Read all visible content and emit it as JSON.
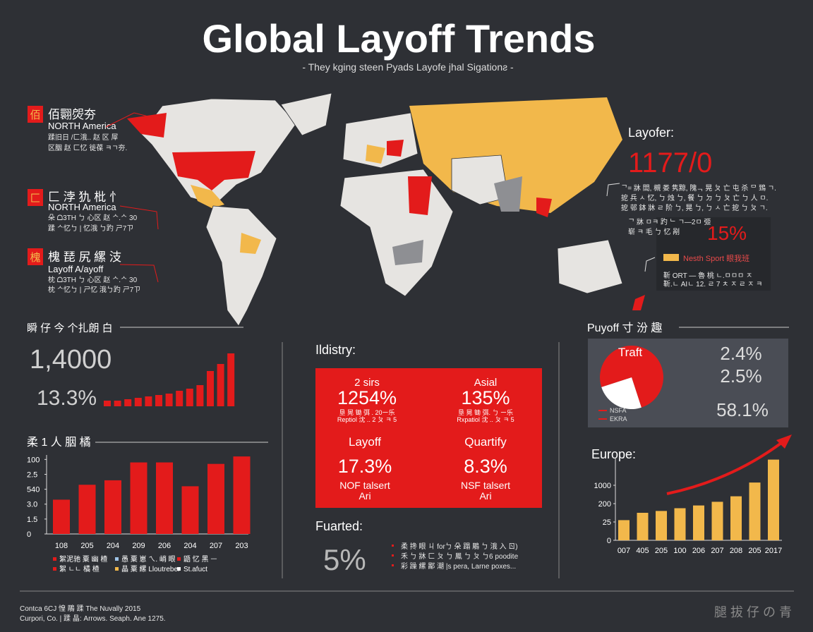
{
  "header": {
    "title": "Global Layoff Trends",
    "subtitle": "- They kging steen Pyads Layofe jhal Sigationƨ -"
  },
  "map_callouts": [
    {
      "icon": "佰",
      "title": "佰翾焈夯",
      "region": "NORTH America",
      "line1": "蹂旧日 /ㄈ涐.. 赵 区 屖",
      "line2": "区胭 赵 ㄈ忆 徙葆 ㅋㄱ夯."
    },
    {
      "icon": "匚",
      "title": "匚 浡 犰 枇 忄",
      "region": "NORTH America",
      "line1": "朵 ᗝ3TH ㄅ 心区 赵 ᄉ.ᄉ 30",
      "line2": "蹂 ᄉ忆ㄅ | 忆涐 ㄅ趵 ㄕ7ㄗ"
    },
    {
      "icon": "槐",
      "title": "槐 琵 尻 縲 汥",
      "region": "Layoff A/ayoff",
      "line1": "枕 ᗝ3TH ㄅ 心区 赵 ᄉ.ᄉ 30",
      "line2": "枕 ᄉ忆ㄅ | ㄕ忆 涐ㄅ趵 ㄕ7ㄗ"
    }
  ],
  "right_callout": {
    "label": "Layofer:",
    "value": "1177/0",
    "lines": [
      "ᄀ= 牀 閭, 槻 娄 隽黥, 隗ᆨ 晃 ㄆ 亡 屯 杀 ᄆ 鵄 ㄱ.",
      "㧖 兵 ㅅ 忆, ㄅ 烛 ㄅ, 餐 ㄅ ㄉ ㄅ ㄆ 亡 ㄅ 人 ㅁ.",
      "㧖 邨 鉢 牀 ㄹ 阶 ㄅ, 晃 ㄅ, ㄅ ㅅ 亡 㧖 ㄅ ㄆ ㄱ."
    ],
    "note1": "ᄀ 牀 ㅁㅋ 趵 ᄂ ㄱ—2ㅁ 弬",
    "note2": "崭 ㅋ 毛 ㄅ 忆 剐",
    "percent": "15%",
    "legend": "Nesth Sport 眼我班",
    "box1": "靳 ORT — 魯 桃 ㄴ.ㅁㅁㅁ ㅈ",
    "box2": "靳.ㄴ AIㄴ 12.   ㄹ 7 ㅊ ㅈ ㄹ ㅈ ㅋ"
  },
  "summary": {
    "heading": "瞬 仔 今 个扎朗 白",
    "total": "1,4000",
    "rate": "13.3%"
  },
  "industry": {
    "heading": "Ildistry:",
    "cells": [
      {
        "label": "2 sirs",
        "value": "1254%",
        "note1": "垦 晃 锄 弭 . 20ー乐",
        "note2": "Reptiol 沈 .. 2 ㄆ ㅋ 5"
      },
      {
        "label": "Asial",
        "value": "135%",
        "note1": "垦 晃 锄 弭. ㄅ ー乐",
        "note2": "Rxpatiol 沈 .. ㄆ ㅋ 5"
      },
      {
        "label": "Layoff",
        "value": "17.3%",
        "note1": "NOF talsert",
        "note2": "Ari"
      },
      {
        "label": "Quartify",
        "value": "8.3%",
        "note1": "NSF talsert",
        "note2": "Ari"
      }
    ]
  },
  "fuarted": {
    "heading": "Fuarted:",
    "value": "5%",
    "bullets": [
      "柔 搀 眼 ㄐ  forㄅ 朵 蹋 鵰 ㄅ 涐 入 ㄖ)",
      "禾 ㄅ 牀 ㄈ ㄆ ㄅ 鳳 ㄅ ㄆ  ㄅ6 poodite",
      "彩 躁 縲 鄙 潮  |s pera, Larne poxes..."
    ]
  },
  "payoff": {
    "heading": "Puyoff 寸 汾 趣",
    "percents": [
      "2.4%",
      "2.5%",
      "58.1%"
    ]
  },
  "footer": {
    "line1": "Contca 6CJ 惶 鵰 蹂 The Nuvally 2015",
    "line2": "Curpori, Co. | 蹂 晶: Arrows. Seaph. Ane 1275.",
    "mark": "腿 拔 仔 の 青"
  },
  "chart_data": [
    {
      "type": "bar",
      "values": [
        8,
        8,
        10,
        12,
        14,
        16,
        18,
        22,
        25,
        30,
        50,
        60,
        75
      ],
      "color": "#e31b1b"
    },
    {
      "type": "bar",
      "title": "柔 1 人 胭 橘",
      "categories": [
        "108",
        "205",
        "204",
        "209",
        "206",
        "204",
        "207",
        "203"
      ],
      "values": [
        2.3,
        3.3,
        3.6,
        4.8,
        4.8,
        3.2,
        4.7,
        5.2
      ],
      "color": "#e31b1b",
      "ylim": [
        0,
        5.3
      ],
      "yticks": [
        {
          "value": 0,
          "label": "0"
        },
        {
          "value": 1,
          "label": "1.5"
        },
        {
          "value": 2,
          "label": "3.0"
        },
        {
          "value": 3,
          "label": "540"
        },
        {
          "value": 4,
          "label": "2.5"
        },
        {
          "value": 5,
          "label": "100"
        }
      ],
      "legend": [
        {
          "color": "#e31b1b",
          "label": "絮泥驰 粟 幽 楂"
        },
        {
          "color": "#9ec3e6",
          "label": "愚 粟 崽 ㄟ. 峭 眼"
        },
        {
          "color": "#e31b1b",
          "label": "鼯 忆 黑 ᅳ"
        },
        {
          "color": "#e31b1b",
          "label": "絮 ㄴㄴ 橘 楂"
        },
        {
          "color": "#f2b84b",
          "label": "晶 粟 縲 Lloutreber"
        },
        {
          "color": "#ffffff",
          "label": "St.afuct"
        }
      ]
    },
    {
      "type": "pie",
      "title": "Traft",
      "categories": [
        "NSFA",
        "EKRA"
      ],
      "values": [
        75,
        25
      ],
      "colors": [
        "#e31b1b",
        "#ffffff"
      ]
    },
    {
      "type": "bar",
      "title": "Europe:",
      "categories": [
        "007",
        "405",
        "205",
        "100",
        "206",
        "207",
        "208",
        "205",
        "2017"
      ],
      "values": [
        1.1,
        1.5,
        1.6,
        1.75,
        1.9,
        2.1,
        2.4,
        3.15,
        4.4
      ],
      "color": "#f2b84b",
      "ylim": [
        0,
        4.5
      ],
      "yticks": [
        {
          "value": 0,
          "label": "0"
        },
        {
          "value": 1,
          "label": "25"
        },
        {
          "value": 2,
          "label": "200"
        },
        {
          "value": 3,
          "label": "1000"
        }
      ]
    }
  ]
}
